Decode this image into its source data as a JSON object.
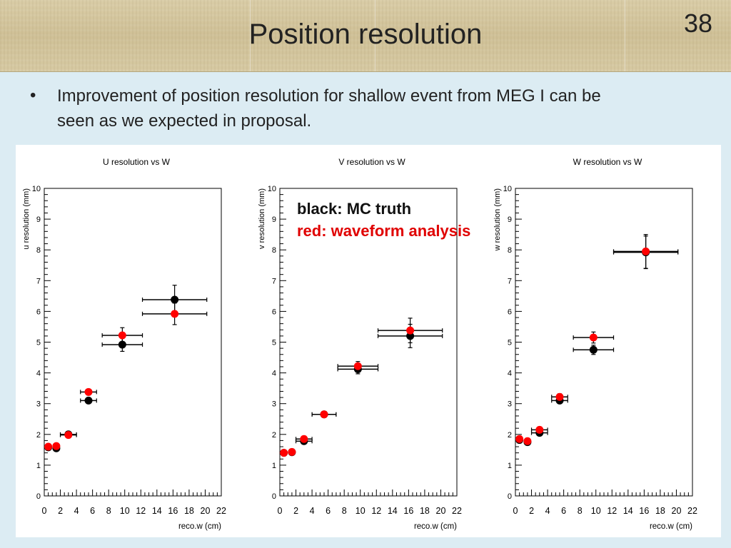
{
  "slide": {
    "title": "Position resolution",
    "page_number": "38",
    "bullet": "Improvement of position resolution for shallow event from MEG I can be seen as we expected in proposal."
  },
  "legend": {
    "black_label": "black: MC truth",
    "red_label": "red: waveform analysis"
  },
  "colors": {
    "mc": "#000000",
    "waveform": "#ff0000",
    "legend_red": "#e00000"
  },
  "chart_data": [
    {
      "type": "scatter",
      "title": "U resolution vs W",
      "xlabel": "reco.w (cm)",
      "ylabel": "u resolution (mm)",
      "xlim": [
        0,
        22
      ],
      "ylim": [
        0,
        10
      ],
      "xticks": [
        "0",
        "2",
        "4",
        "6",
        "8",
        "10",
        "12",
        "14",
        "16",
        "18",
        "20",
        "22"
      ],
      "yticks": [
        "0",
        "1",
        "2",
        "3",
        "4",
        "5",
        "6",
        "7",
        "8",
        "9",
        "10"
      ],
      "series": [
        {
          "name": "MC truth",
          "color": "black",
          "points": [
            {
              "x": 0.5,
              "y": 1.58,
              "xerr": 0,
              "yerr": 0
            },
            {
              "x": 1.5,
              "y": 1.55,
              "xerr": 0,
              "yerr": 0
            },
            {
              "x": 3.0,
              "y": 2.0,
              "xerr": 1.0,
              "yerr": 0.05
            },
            {
              "x": 5.5,
              "y": 3.1,
              "xerr": 1.0,
              "yerr": 0.04
            },
            {
              "x": 9.7,
              "y": 4.92,
              "xerr": 2.5,
              "yerr": 0.22
            },
            {
              "x": 16.2,
              "y": 6.38,
              "xerr": 4.0,
              "yerr": 0.47
            }
          ]
        },
        {
          "name": "waveform analysis",
          "color": "red",
          "points": [
            {
              "x": 0.5,
              "y": 1.6,
              "xerr": 0,
              "yerr": 0
            },
            {
              "x": 1.5,
              "y": 1.62,
              "xerr": 0,
              "yerr": 0
            },
            {
              "x": 3.0,
              "y": 1.98,
              "xerr": 1.0,
              "yerr": 0.05
            },
            {
              "x": 5.5,
              "y": 3.38,
              "xerr": 1.0,
              "yerr": 0.08
            },
            {
              "x": 9.7,
              "y": 5.22,
              "xerr": 2.5,
              "yerr": 0.25
            },
            {
              "x": 16.2,
              "y": 5.92,
              "xerr": 4.0,
              "yerr": 0.35
            }
          ]
        }
      ]
    },
    {
      "type": "scatter",
      "title": "V resolution vs W",
      "xlabel": "reco.w (cm)",
      "ylabel": "v resolution (mm)",
      "xlim": [
        0,
        22
      ],
      "ylim": [
        0,
        10
      ],
      "xticks": [
        "0",
        "2",
        "4",
        "6",
        "8",
        "10",
        "12",
        "14",
        "16",
        "18",
        "20",
        "22"
      ],
      "yticks": [
        "0",
        "1",
        "2",
        "3",
        "4",
        "5",
        "6",
        "7",
        "8",
        "9",
        "10"
      ],
      "series": [
        {
          "name": "MC truth",
          "color": "black",
          "points": [
            {
              "x": 0.5,
              "y": 1.4,
              "xerr": 0,
              "yerr": 0
            },
            {
              "x": 1.5,
              "y": 1.42,
              "xerr": 0,
              "yerr": 0
            },
            {
              "x": 3.0,
              "y": 1.78,
              "xerr": 1.0,
              "yerr": 0.05
            },
            {
              "x": 5.5,
              "y": 2.65,
              "xerr": 1.5,
              "yerr": 0.03
            },
            {
              "x": 9.7,
              "y": 4.12,
              "xerr": 2.5,
              "yerr": 0.15
            },
            {
              "x": 16.2,
              "y": 5.2,
              "xerr": 4.0,
              "yerr": 0.38
            }
          ]
        },
        {
          "name": "waveform analysis",
          "color": "red",
          "points": [
            {
              "x": 0.5,
              "y": 1.4,
              "xerr": 0,
              "yerr": 0
            },
            {
              "x": 1.5,
              "y": 1.43,
              "xerr": 0,
              "yerr": 0
            },
            {
              "x": 3.0,
              "y": 1.85,
              "xerr": 1.0,
              "yerr": 0.05
            },
            {
              "x": 5.5,
              "y": 2.65,
              "xerr": 1.5,
              "yerr": 0.03
            },
            {
              "x": 9.7,
              "y": 4.22,
              "xerr": 2.5,
              "yerr": 0.15
            },
            {
              "x": 16.2,
              "y": 5.38,
              "xerr": 4.0,
              "yerr": 0.4
            }
          ]
        }
      ]
    },
    {
      "type": "scatter",
      "title": "W resolution vs W",
      "xlabel": "reco.w (cm)",
      "ylabel": "w resolution (mm)",
      "xlim": [
        0,
        22
      ],
      "ylim": [
        0,
        10
      ],
      "xticks": [
        "0",
        "2",
        "4",
        "6",
        "8",
        "10",
        "12",
        "14",
        "16",
        "18",
        "20",
        "22"
      ],
      "yticks": [
        "0",
        "1",
        "2",
        "3",
        "4",
        "5",
        "6",
        "7",
        "8",
        "9",
        "10"
      ],
      "series": [
        {
          "name": "MC truth",
          "color": "black",
          "points": [
            {
              "x": 0.5,
              "y": 1.82,
              "xerr": 0,
              "yerr": 0
            },
            {
              "x": 1.5,
              "y": 1.75,
              "xerr": 0,
              "yerr": 0
            },
            {
              "x": 3.0,
              "y": 2.05,
              "xerr": 1.0,
              "yerr": 0.05
            },
            {
              "x": 5.5,
              "y": 3.1,
              "xerr": 1.0,
              "yerr": 0.08
            },
            {
              "x": 9.7,
              "y": 4.75,
              "xerr": 2.5,
              "yerr": 0.15
            },
            {
              "x": 16.2,
              "y": 7.92,
              "xerr": 4.0,
              "yerr": 0.53
            }
          ]
        },
        {
          "name": "waveform analysis",
          "color": "red",
          "points": [
            {
              "x": 0.5,
              "y": 1.85,
              "xerr": 0,
              "yerr": 0
            },
            {
              "x": 1.5,
              "y": 1.78,
              "xerr": 0,
              "yerr": 0
            },
            {
              "x": 3.0,
              "y": 2.15,
              "xerr": 1.0,
              "yerr": 0.05
            },
            {
              "x": 5.5,
              "y": 3.22,
              "xerr": 1.0,
              "yerr": 0.1
            },
            {
              "x": 9.7,
              "y": 5.15,
              "xerr": 2.5,
              "yerr": 0.18
            },
            {
              "x": 16.2,
              "y": 7.95,
              "xerr": 4.0,
              "yerr": 0.55
            }
          ]
        }
      ]
    }
  ]
}
